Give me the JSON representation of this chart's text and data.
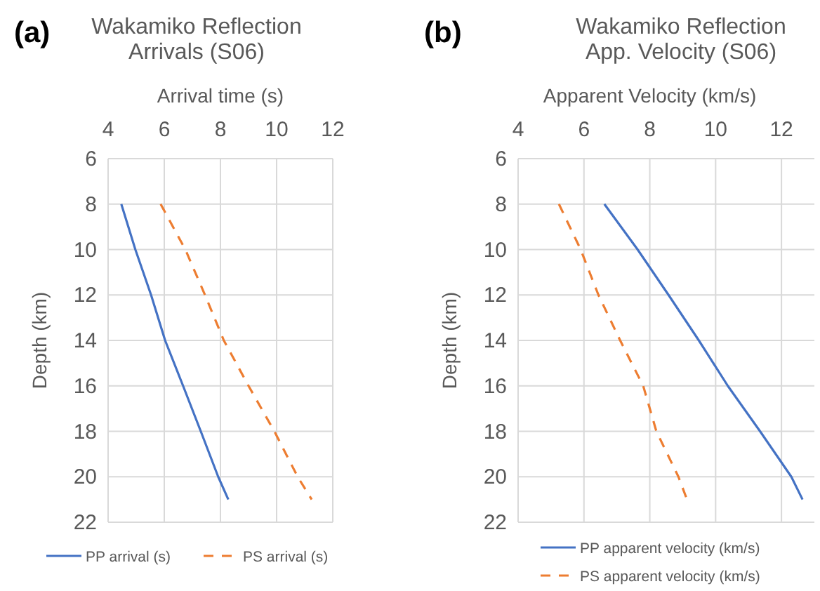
{
  "chart_data": [
    {
      "type": "line",
      "title": "Wakamiko Reflection Arrivals (S06)",
      "annotations": [
        "(a)"
      ],
      "xlabel": "Arrival time (s)",
      "ylabel": "Depth (km)",
      "xlim": [
        4,
        12
      ],
      "xticks": [
        4,
        6,
        8,
        10,
        12
      ],
      "ylim": [
        22,
        6
      ],
      "yticks": [
        6,
        8,
        10,
        12,
        14,
        16,
        18,
        20,
        22
      ],
      "grid": true,
      "legend": "bottom",
      "series": [
        {
          "name": "PP arrival (s)",
          "color": "#4472c4",
          "line_style": "solid",
          "x": [
            4.47,
            4.97,
            5.53,
            6.03,
            6.67,
            7.3,
            7.92,
            8.28
          ],
          "values": [
            8,
            10,
            12,
            14,
            16,
            18,
            20,
            21
          ]
        },
        {
          "name": "PS arrival (s)",
          "color": "#ed7d31",
          "line_style": "dashed",
          "x": [
            5.87,
            6.75,
            7.45,
            8.12,
            9.0,
            9.92,
            10.75,
            11.25
          ],
          "values": [
            8,
            10,
            12,
            14,
            16,
            18,
            20,
            21
          ]
        }
      ]
    },
    {
      "type": "line",
      "title": "Wakamiko Reflection App. Velocity (S06)",
      "annotations": [
        "(b)"
      ],
      "xlabel": "Apparent Velocity (km/s)",
      "ylabel": "Depth (km)",
      "xlim": [
        4,
        13
      ],
      "xticks": [
        4,
        6,
        8,
        10,
        12
      ],
      "ylim": [
        22,
        6
      ],
      "yticks": [
        6,
        8,
        10,
        12,
        14,
        16,
        18,
        20,
        22
      ],
      "grid": true,
      "legend": "bottom",
      "series": [
        {
          "name": "PP apparent velocity (km/s)",
          "color": "#4472c4",
          "line_style": "solid",
          "x": [
            6.62,
            7.63,
            8.57,
            9.49,
            10.37,
            11.35,
            12.3,
            12.64
          ],
          "values": [
            8,
            10,
            12,
            14,
            16,
            18,
            20,
            21
          ]
        },
        {
          "name": "PS apparent velocity (km/s)",
          "color": "#ed7d31",
          "line_style": "dashed",
          "x": [
            5.24,
            5.9,
            6.44,
            7.1,
            7.8,
            8.2,
            8.87,
            9.13
          ],
          "values": [
            8,
            10,
            12,
            14,
            16,
            18,
            20,
            21
          ]
        }
      ]
    }
  ]
}
